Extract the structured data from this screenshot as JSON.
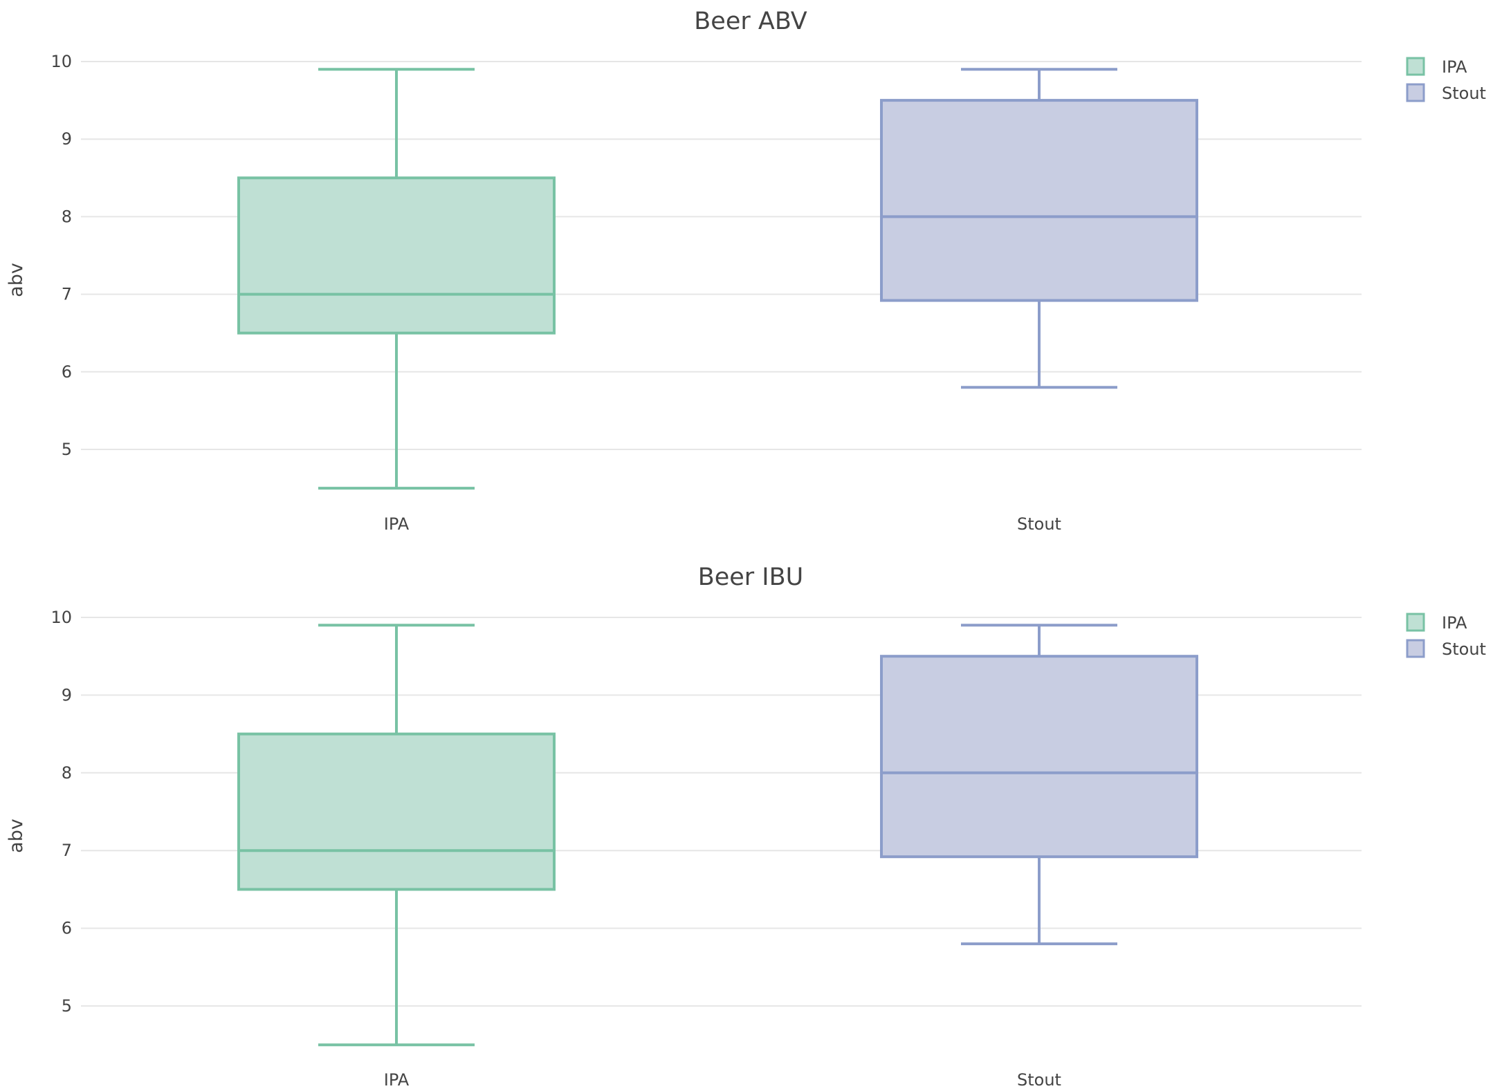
{
  "chart_data": [
    {
      "type": "box",
      "title": "Beer ABV",
      "xlabel": "",
      "ylabel": "abv",
      "categories": [
        "IPA",
        "Stout"
      ],
      "y_ticks": [
        "5",
        "6",
        "7",
        "8",
        "9",
        "10"
      ],
      "ylim": [
        4.3,
        10.1
      ],
      "grid": true,
      "legend_position": "top-right",
      "series": [
        {
          "name": "IPA",
          "category": "IPA",
          "min": 4.5,
          "q1": 6.5,
          "median": 7.0,
          "q3": 8.5,
          "max": 9.9,
          "stroke": "#78c2a4",
          "fill": "#bfe0d4"
        },
        {
          "name": "Stout",
          "category": "Stout",
          "min": 5.8,
          "q1": 6.92,
          "median": 8.0,
          "q3": 9.5,
          "max": 9.9,
          "stroke": "#8c9dca",
          "fill": "#c8cde2"
        }
      ]
    },
    {
      "type": "box",
      "title": "Beer IBU",
      "xlabel": "",
      "ylabel": "abv",
      "categories": [
        "IPA",
        "Stout"
      ],
      "y_ticks": [
        "5",
        "6",
        "7",
        "8",
        "9",
        "10"
      ],
      "ylim": [
        4.3,
        10.1
      ],
      "grid": true,
      "legend_position": "top-right",
      "series": [
        {
          "name": "IPA",
          "category": "IPA",
          "min": 4.5,
          "q1": 6.5,
          "median": 7.0,
          "q3": 8.5,
          "max": 9.9,
          "stroke": "#78c2a4",
          "fill": "#bfe0d4"
        },
        {
          "name": "Stout",
          "category": "Stout",
          "min": 5.8,
          "q1": 6.92,
          "median": 8.0,
          "q3": 9.5,
          "max": 9.9,
          "stroke": "#8c9dca",
          "fill": "#c8cde2"
        }
      ]
    }
  ]
}
